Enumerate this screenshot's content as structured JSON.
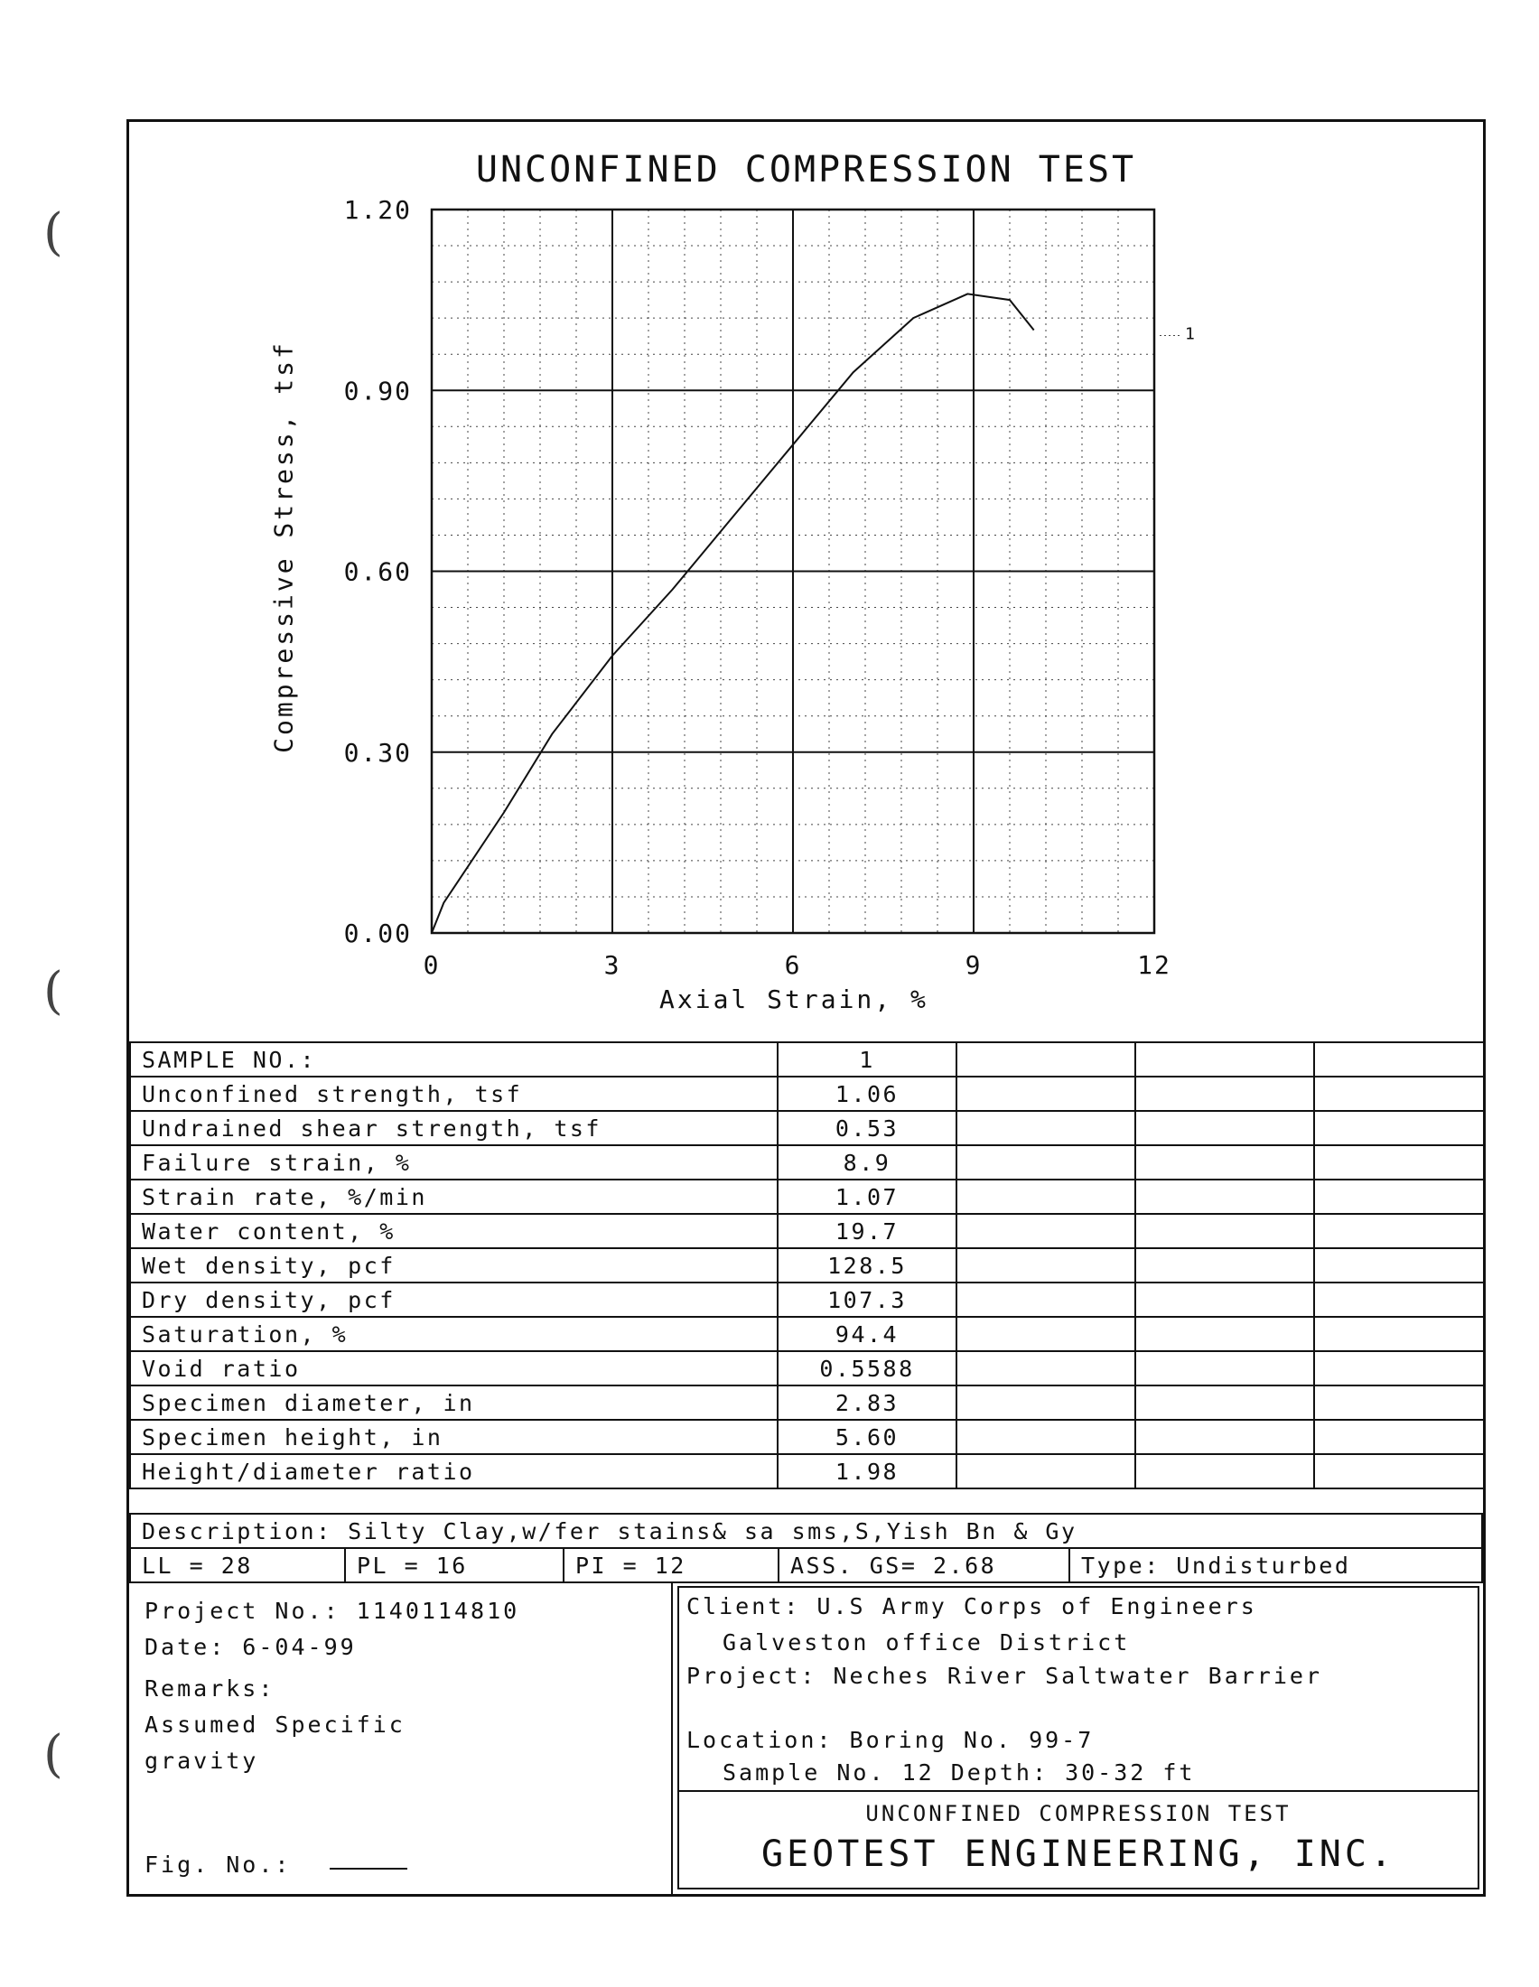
{
  "chart_data": {
    "type": "line",
    "title": "UNCONFINED COMPRESSION TEST",
    "xlabel": "Axial Strain, %",
    "ylabel": "Compressive Stress, tsf",
    "xlim": [
      0,
      12
    ],
    "ylim": [
      0,
      1.2
    ],
    "xticks": [
      "0",
      "3",
      "6",
      "9",
      "12"
    ],
    "yticks": [
      "0.00",
      "0.30",
      "0.60",
      "0.90",
      "1.20"
    ],
    "grid": true,
    "series": [
      {
        "name": "1",
        "x": [
          0,
          0.2,
          0.6,
          1.2,
          2.0,
          3.0,
          4.0,
          5.0,
          6.0,
          7.0,
          8.0,
          8.9,
          9.6,
          10.0
        ],
        "y": [
          0,
          0.05,
          0.11,
          0.2,
          0.33,
          0.46,
          0.57,
          0.69,
          0.81,
          0.93,
          1.02,
          1.06,
          1.05,
          1.0
        ]
      }
    ]
  },
  "sample_table": {
    "rows": [
      {
        "label": "SAMPLE NO.:",
        "value": "1"
      },
      {
        "label": "Unconfined strength, tsf",
        "value": "1.06"
      },
      {
        "label": "Undrained shear strength, tsf",
        "value": "0.53"
      },
      {
        "label": "Failure strain, %",
        "value": "8.9"
      },
      {
        "label": "Strain rate, %/min",
        "value": "1.07"
      },
      {
        "label": "Water content, %",
        "value": "19.7"
      },
      {
        "label": "Wet density, pcf",
        "value": "128.5"
      },
      {
        "label": "Dry density, pcf",
        "value": "107.3"
      },
      {
        "label": "Saturation, %",
        "value": "94.4"
      },
      {
        "label": "Void ratio",
        "value": "0.5588"
      },
      {
        "label": "Specimen diameter, in",
        "value": "2.83"
      },
      {
        "label": "Specimen height, in",
        "value": "5.60"
      },
      {
        "label": "Height/diameter ratio",
        "value": "1.98"
      }
    ]
  },
  "description": "Description: Silty Clay,w/fer stains& sa sms,S,Yish Bn & Gy",
  "limits": {
    "ll": "LL = 28",
    "pl": "PL = 16",
    "pi": "PI =  12",
    "gs": "ASS. GS= 2.68",
    "type": "Type: Undisturbed"
  },
  "left_info": {
    "project_no": "Project No.: 1140114810",
    "date": "Date: 6-04-99",
    "remarks_label": "Remarks:",
    "remarks_1": "Assumed Specific",
    "remarks_2": "gravity",
    "fig_no": "Fig. No.:"
  },
  "right_info": {
    "client": "Client: U.S Army Corps of Engineers",
    "client_2": "Galveston office District",
    "project": "Project: Neches River Saltwater Barrier",
    "location": "Location: Boring No. 99-7",
    "sample": "Sample No. 12    Depth: 30-32 ft",
    "report_title": "UNCONFINED COMPRESSION TEST",
    "company": "GEOTEST ENGINEERING, INC."
  }
}
